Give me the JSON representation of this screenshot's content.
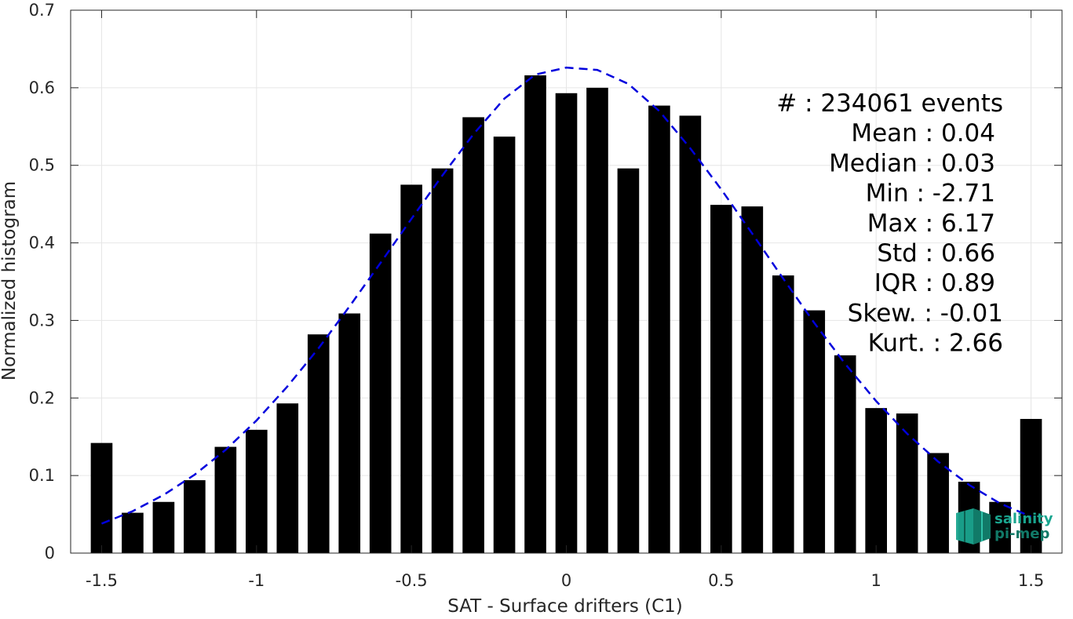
{
  "chart_data": {
    "type": "bar",
    "xlabel": "SAT - Surface drifters (C1)",
    "ylabel": "Normalized histogram",
    "xlim": [
      -1.6,
      1.6
    ],
    "ylim": [
      0,
      0.7
    ],
    "xticks": [
      -1.5,
      -1,
      -0.5,
      0,
      0.5,
      1,
      1.5
    ],
    "xtick_labels": [
      "-1.5",
      "-1",
      "-0.5",
      "0",
      "0.5",
      "1",
      "1.5"
    ],
    "yticks": [
      0,
      0.1,
      0.2,
      0.3,
      0.4,
      0.5,
      0.6,
      0.7
    ],
    "ytick_labels": [
      "0",
      "0.1",
      "0.2",
      "0.3",
      "0.4",
      "0.5",
      "0.6",
      "0.7"
    ],
    "grid": true,
    "bar_color": "#000000",
    "bar_width_fraction": 0.7,
    "bins": {
      "x": [
        -1.5,
        -1.4,
        -1.3,
        -1.2,
        -1.1,
        -1.0,
        -0.9,
        -0.8,
        -0.7,
        -0.6,
        -0.5,
        -0.4,
        -0.3,
        -0.2,
        -0.1,
        0.0,
        0.1,
        0.2,
        0.3,
        0.4,
        0.5,
        0.6,
        0.7,
        0.8,
        0.9,
        1.0,
        1.1,
        1.2,
        1.3,
        1.4,
        1.5
      ],
      "values": [
        0.142,
        0.052,
        0.066,
        0.094,
        0.137,
        0.159,
        0.193,
        0.282,
        0.309,
        0.412,
        0.475,
        0.496,
        0.562,
        0.537,
        0.616,
        0.593,
        0.6,
        0.496,
        0.577,
        0.564,
        0.449,
        0.447,
        0.358,
        0.313,
        0.255,
        0.187,
        0.18,
        0.129,
        0.092,
        0.066,
        0.173
      ]
    },
    "fit_curve": {
      "style": "dashed",
      "color": "#0000dd",
      "x": [
        -1.5,
        -1.4,
        -1.3,
        -1.2,
        -1.1,
        -1.0,
        -0.9,
        -0.8,
        -0.7,
        -0.6,
        -0.5,
        -0.4,
        -0.3,
        -0.2,
        -0.1,
        0.0,
        0.1,
        0.2,
        0.3,
        0.4,
        0.5,
        0.6,
        0.7,
        0.8,
        0.9,
        1.0,
        1.1,
        1.2,
        1.3,
        1.4,
        1.5
      ],
      "values": [
        0.038,
        0.054,
        0.075,
        0.101,
        0.133,
        0.171,
        0.215,
        0.264,
        0.318,
        0.374,
        0.431,
        0.487,
        0.54,
        0.586,
        0.617,
        0.626,
        0.623,
        0.605,
        0.57,
        0.522,
        0.469,
        0.412,
        0.354,
        0.297,
        0.244,
        0.196,
        0.154,
        0.118,
        0.088,
        0.064,
        0.047
      ]
    },
    "stats": [
      {
        "label": "#  : 234061 events"
      },
      {
        "label": "Mean : 0.04"
      },
      {
        "label": "Median : 0.03"
      },
      {
        "label": "Min : -2.71"
      },
      {
        "label": "Max : 6.17"
      },
      {
        "label": "Std : 0.66"
      },
      {
        "label": "IQR : 0.89"
      },
      {
        "label": "Skew. : -0.01"
      },
      {
        "label": "Kurt. : 2.66"
      }
    ]
  },
  "logo": {
    "line1": "salinity",
    "line2": "pi-mep",
    "color": "#1aa58f"
  }
}
